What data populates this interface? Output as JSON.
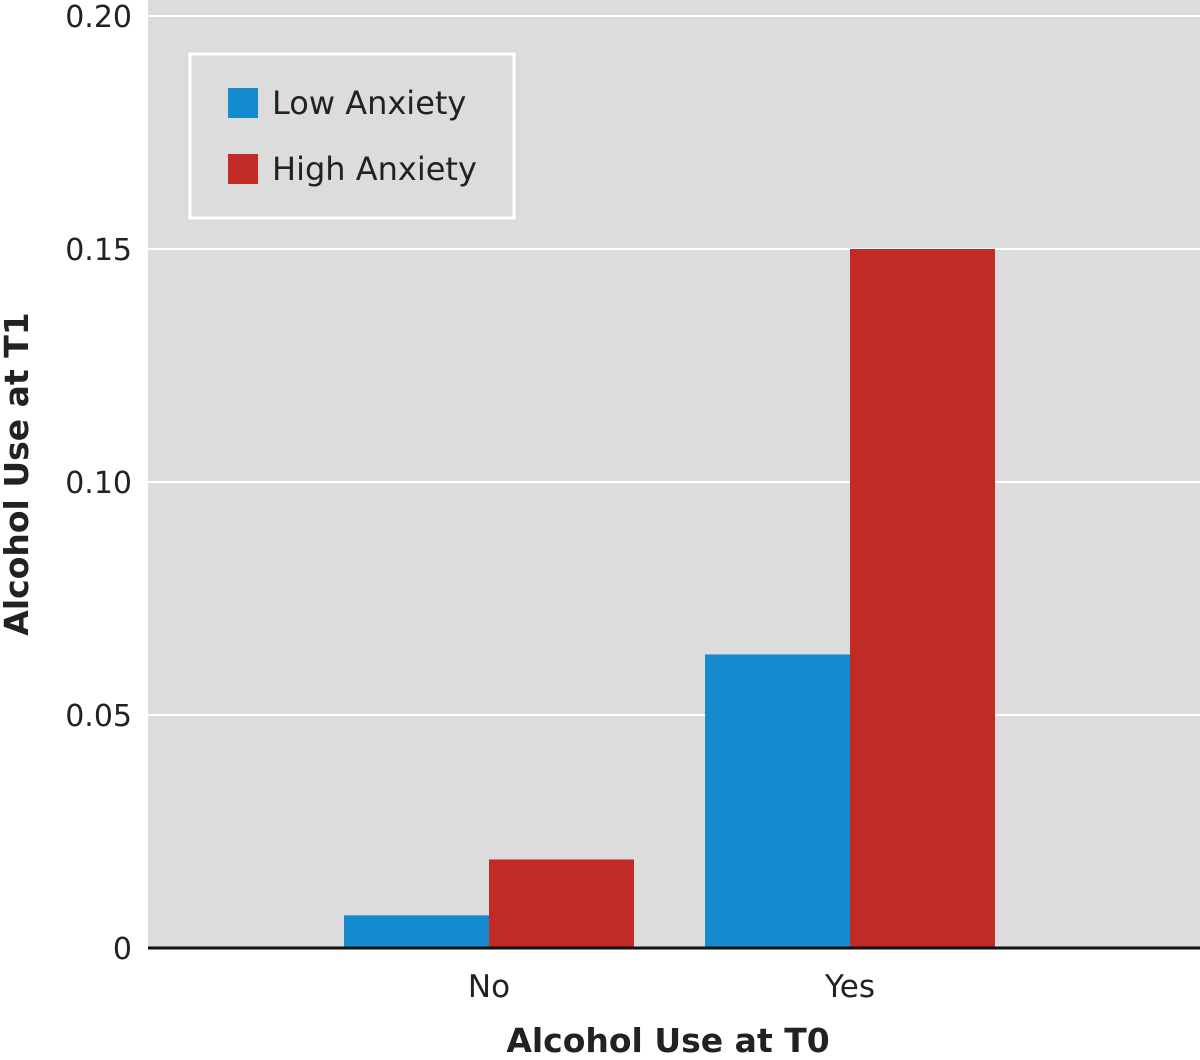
{
  "chart_data": {
    "type": "bar",
    "title": "",
    "xlabel": "Alcohol Use at T0",
    "ylabel": "Alcohol Use at T1",
    "categories": [
      "No",
      "Yes"
    ],
    "series": [
      {
        "name": "Low Anxiety",
        "values": [
          0.007,
          0.063
        ]
      },
      {
        "name": "High Anxiety",
        "values": [
          0.019,
          0.15
        ]
      }
    ],
    "ylim": [
      0,
      0.2
    ],
    "yticks": [
      "0",
      "0.05",
      "0.10",
      "0.15",
      "0.20"
    ],
    "ytick_values": [
      0,
      0.05,
      0.1,
      0.15,
      0.2
    ],
    "grid": true,
    "legend_position": "top-left"
  },
  "colors": {
    "plot_background": "#dcdcdd",
    "gridline": "#ffffff",
    "axis": "#111111",
    "series": [
      "#138bce",
      "#c12a25"
    ]
  }
}
